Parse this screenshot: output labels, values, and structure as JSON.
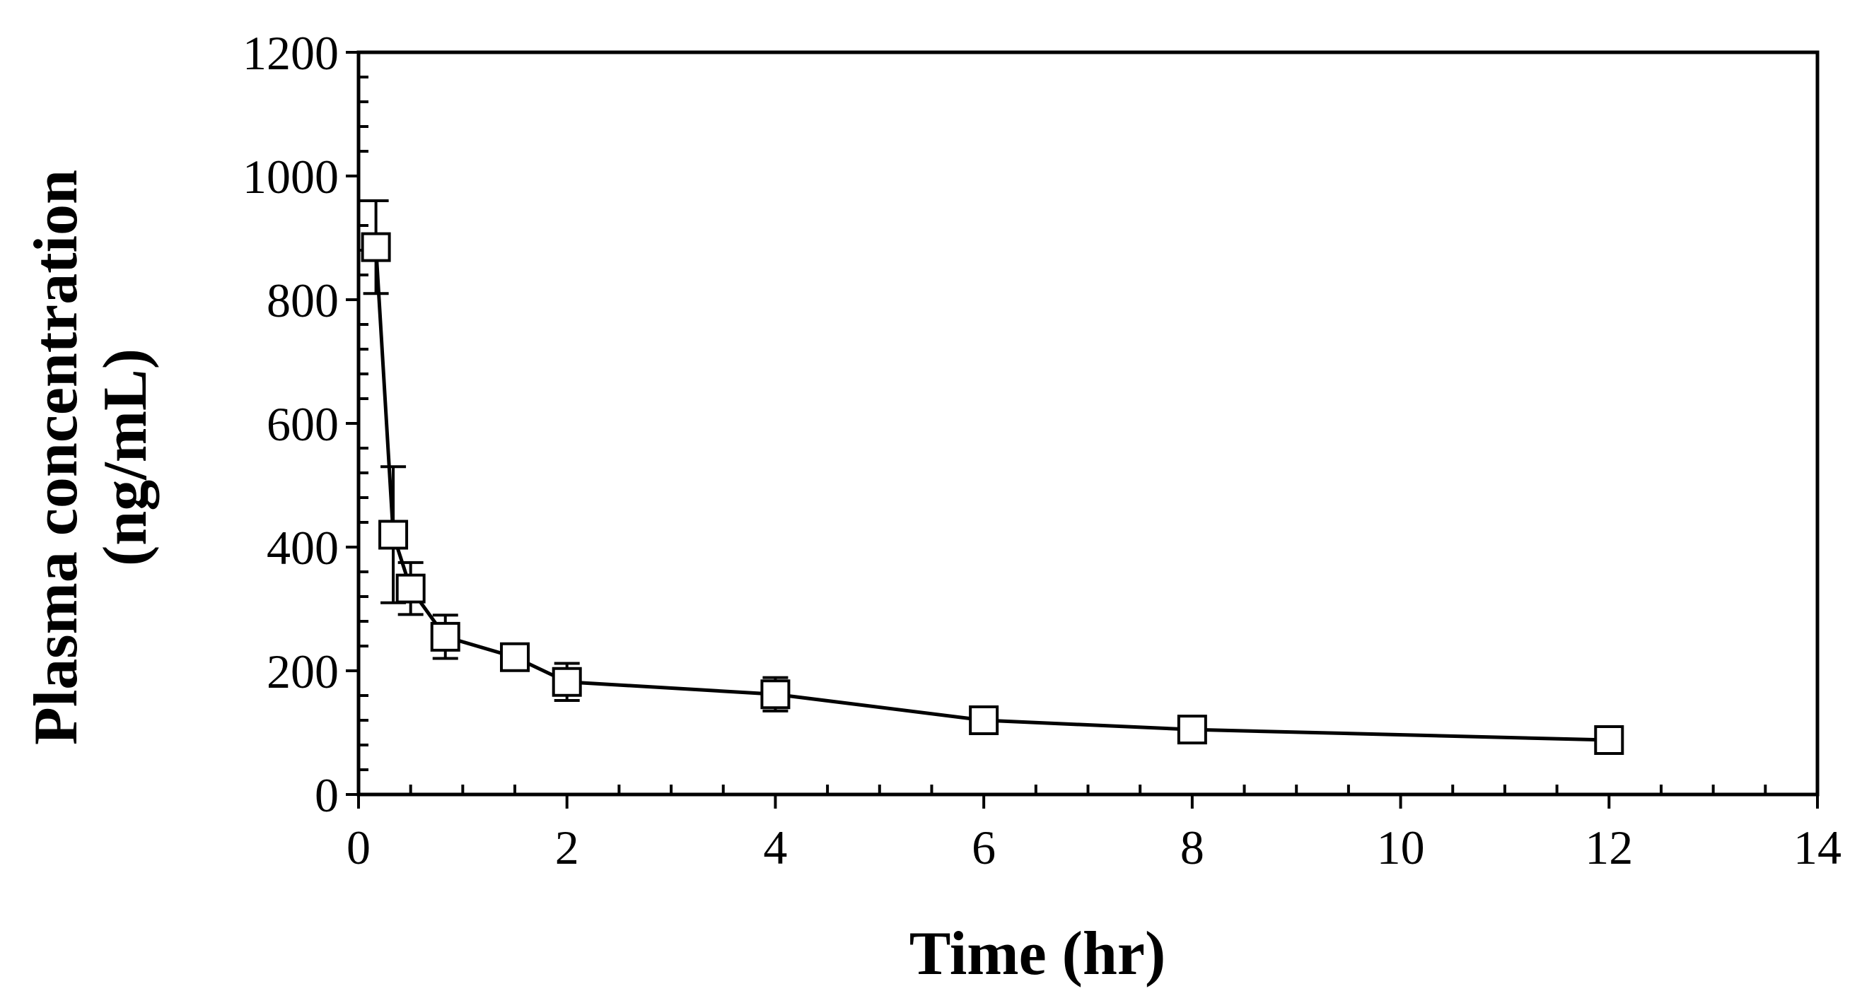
{
  "chart_data": {
    "type": "line",
    "title": "",
    "xlabel": "Time (hr)",
    "ylabel_line1": "Plasma concentration",
    "ylabel_line2": "(ng/mL)",
    "xlim": [
      0,
      14
    ],
    "ylim": [
      0,
      1200
    ],
    "x_ticks": [
      0,
      2,
      4,
      6,
      8,
      10,
      12,
      14
    ],
    "x_tick_labels": [
      "0",
      "2",
      "4",
      "6",
      "8",
      "10",
      "12",
      "14"
    ],
    "y_ticks": [
      0,
      200,
      400,
      600,
      800,
      1000,
      1200
    ],
    "y_tick_labels": [
      "0",
      "200",
      "400",
      "600",
      "800",
      "1000",
      "1200"
    ],
    "x_minor_step": 0.5,
    "y_minor_step": 40,
    "grid": false,
    "series": [
      {
        "name": "Plasma concentration",
        "marker": "open-square",
        "color": "#000000",
        "x": [
          0.167,
          0.333,
          0.5,
          0.833,
          1.5,
          2,
          4,
          6,
          8,
          12
        ],
        "y": [
          885,
          420,
          333,
          255,
          222,
          182,
          162,
          120,
          105,
          88
        ],
        "error": [
          75,
          110,
          42,
          35,
          0,
          30,
          27,
          0,
          0,
          0
        ]
      }
    ]
  }
}
